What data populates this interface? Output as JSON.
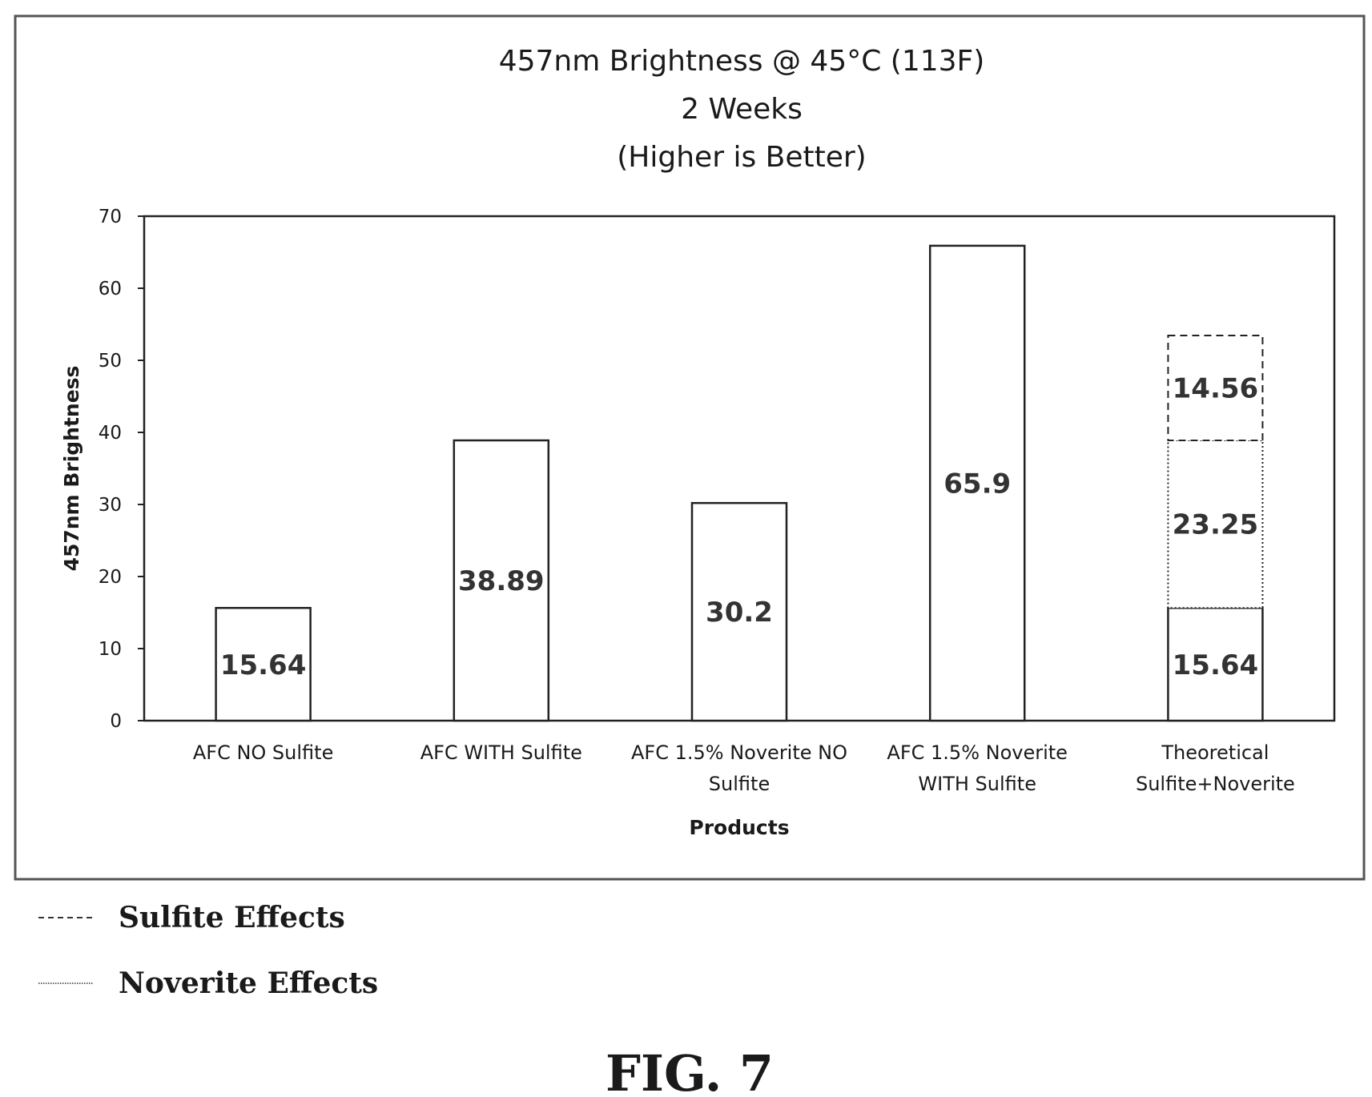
{
  "chart_data": {
    "type": "bar",
    "title_lines": [
      "457nm Brightness @ 45°C (113F)",
      "2 Weeks",
      "(Higher is Better)"
    ],
    "xlabel": "Products",
    "ylabel": "457nm Brightness",
    "ylim": [
      0,
      70
    ],
    "yticks": [
      0,
      10,
      20,
      30,
      40,
      50,
      60,
      70
    ],
    "grid": false,
    "categories": [
      [
        "AFC NO Sulfite"
      ],
      [
        "AFC WITH Sulfite"
      ],
      [
        "AFC 1.5% Noverite NO",
        "Sulfite"
      ],
      [
        "AFC 1.5% Noverite",
        "WITH Sulfite"
      ],
      [
        "Theoretical",
        "Sulfite+Noverite"
      ]
    ],
    "bars": [
      {
        "segments": [
          {
            "value": 15.64,
            "label": "15.64",
            "style": "solid"
          }
        ]
      },
      {
        "segments": [
          {
            "value": 38.89,
            "label": "38.89",
            "style": "solid"
          }
        ]
      },
      {
        "segments": [
          {
            "value": 30.2,
            "label": "30.2",
            "style": "solid"
          }
        ]
      },
      {
        "segments": [
          {
            "value": 65.9,
            "label": "65.9",
            "style": "solid"
          }
        ]
      },
      {
        "segments": [
          {
            "value": 15.64,
            "label": "15.64",
            "style": "solid"
          },
          {
            "value": 23.25,
            "label": "23.25",
            "style": "dotted"
          },
          {
            "value": 14.56,
            "label": "14.56",
            "style": "dashed"
          }
        ]
      }
    ]
  },
  "legend": [
    {
      "label": "Sulfite Effects",
      "style": "dashed"
    },
    {
      "label": "Noverite Effects",
      "style": "dotted"
    }
  ],
  "figure_label": "FIG. 7"
}
